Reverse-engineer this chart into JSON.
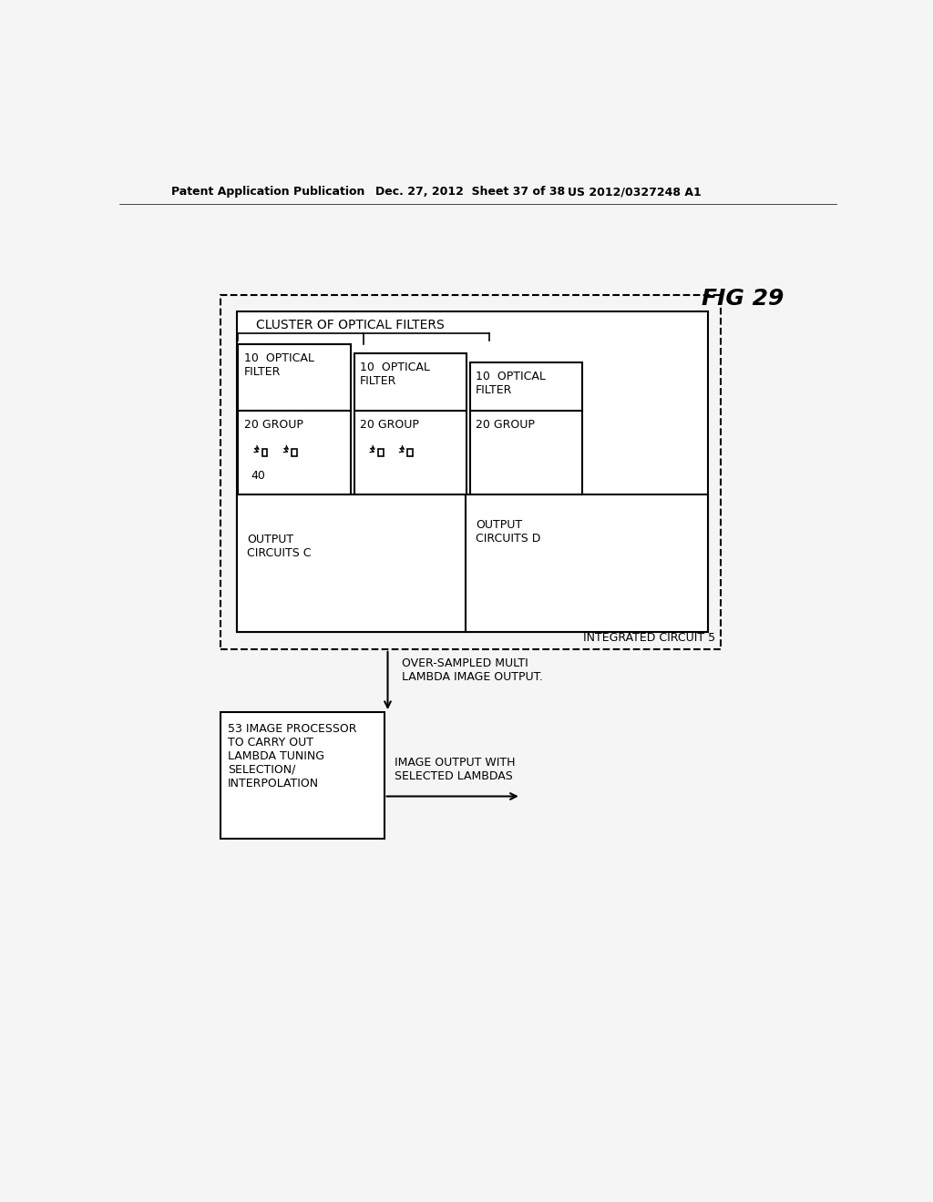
{
  "fig_label": "FIG 29",
  "header_left": "Patent Application Publication",
  "header_mid": "Dec. 27, 2012  Sheet 37 of 38",
  "header_right": "US 2012/0327248 A1",
  "bg_color": "#f0f0f0",
  "text_color": "#000000",
  "cluster_label": "CLUSTER OF OPTICAL FILTERS",
  "integrated_circuit_label": "INTEGRATED CIRCUIT 5",
  "output_c_label": "OUTPUT\nCIRCUITS C",
  "output_d_label": "OUTPUT\nCIRCUITS D",
  "over_sampled_label": "OVER-SAMPLED MULTI\nLAMBDA IMAGE OUTPUT.",
  "processor_label": "53 IMAGE PROCESSOR\nTO CARRY OUT\nLAMBDA TUNING\nSELECTION/\nINTERPOLATION",
  "image_output_label": "IMAGE OUTPUT WITH\nSELECTED LAMBDAS",
  "label_40": "40",
  "filter_labels": [
    "10  OPTICAL\nFILTER",
    "10  OPTICAL\nFILTER",
    "10  OPTICAL\nFILTER"
  ],
  "group_labels": [
    "20 GROUP",
    "20 GROUP",
    "20 GROUP"
  ]
}
